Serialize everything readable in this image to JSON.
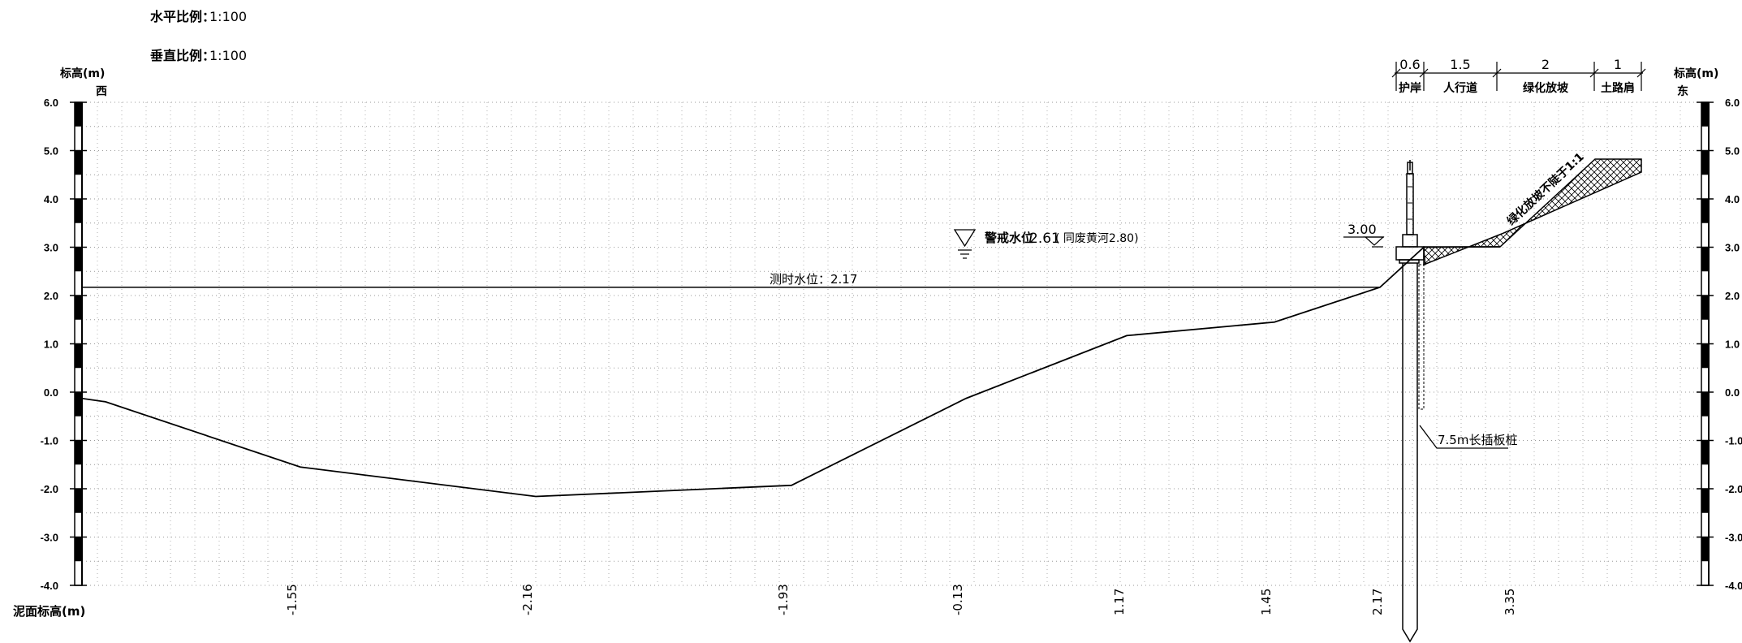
{
  "header": {
    "horizontal_scale_label": "水平比例：",
    "horizontal_scale_value": "1:100",
    "vertical_scale_label": "垂直比例：",
    "vertical_scale_value": "1:100"
  },
  "axes": {
    "elevation_unit_left": "标高(m)",
    "elevation_unit_right": "标高(m)",
    "west_label": "西",
    "east_label": "东",
    "ticks": [
      "6.0",
      "5.0",
      "4.0",
      "3.0",
      "2.0",
      "1.0",
      "0.0",
      "-1.0",
      "-2.0",
      "-3.0",
      "-4.0"
    ],
    "right_ticks": [
      "6.0",
      "5.0",
      "4.0",
      "3.0",
      "2.0",
      "1.0",
      "0.0",
      "-1.0",
      "-2.0",
      "-3.0",
      "-4.0"
    ],
    "ymin": -4.0,
    "ymax": 6.0
  },
  "mud_surface": {
    "row_label": "泥面标高(m)",
    "values": [
      "-1.55",
      "-2.16",
      "-1.93",
      "-0.13",
      "1.17",
      "1.45",
      "2.17",
      "3.35"
    ]
  },
  "profile_points": [
    {
      "elev": -0.13
    },
    {
      "elev": -0.2
    },
    {
      "elev": -1.55
    },
    {
      "elev": -2.16
    },
    {
      "elev": -1.93
    },
    {
      "elev": -0.13
    },
    {
      "elev": 1.17
    },
    {
      "elev": 1.45
    },
    {
      "elev": 2.17
    },
    {
      "elev": 3.0
    }
  ],
  "water_level": {
    "measured_label": "测时水位：2.17",
    "measured_value": 2.17,
    "warning_prefix": "警戒水位",
    "warning_value": "2.61",
    "warning_note": "( 同废黄河2.80)"
  },
  "structure": {
    "crest_elevation": "3.00",
    "sheet_pile_label": "7.5m长插板桩",
    "slope_label": "绿化放坡不陡于1:1"
  },
  "widths": {
    "values": [
      "0.6",
      "1.5",
      "2",
      "1"
    ],
    "names": [
      "护岸",
      "人行道",
      "绿化放坡",
      "土路肩"
    ]
  }
}
